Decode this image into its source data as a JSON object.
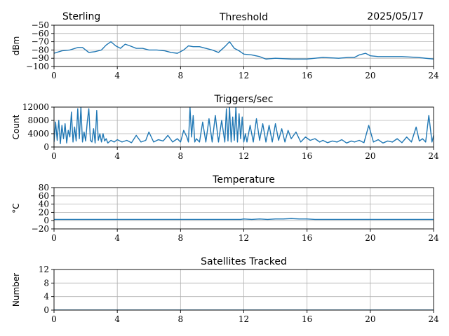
{
  "header": {
    "station": "Sterling",
    "date": "2025/05/17"
  },
  "colors": {
    "series": "#1f77b4",
    "grid": "#b0b0b0"
  },
  "chart_data": [
    {
      "type": "line",
      "title": "Threshold",
      "ylabel": "dBm",
      "xlabel": "",
      "xlim": [
        0,
        24
      ],
      "ylim": [
        -100,
        -50
      ],
      "xticks": [
        "0",
        "4",
        "8",
        "12",
        "16",
        "20",
        "24"
      ],
      "yticks": [
        "−50",
        "−60",
        "−70",
        "−80",
        "−90",
        "−100"
      ],
      "yticks_values": [
        -50,
        -60,
        -70,
        -80,
        -90,
        -100
      ],
      "grid": true,
      "series": [
        {
          "x": [
            0,
            0.5,
            1,
            1.5,
            1.8,
            2.2,
            2.6,
            3.0,
            3.3,
            3.6,
            3.9,
            4.2,
            4.5,
            4.8,
            5.2,
            5.6,
            6.0,
            6.5,
            7.0,
            7.4,
            7.8,
            8.2,
            8.5,
            8.8,
            9.2,
            9.6,
            10.0,
            10.4,
            10.8,
            11.1,
            11.4,
            11.7,
            12.0,
            12.5,
            13.0,
            13.4,
            14.0,
            15.0,
            16.0,
            16.5,
            17.0,
            18.0,
            18.6,
            19.0,
            19.3,
            19.7,
            20.0,
            20.5,
            21.0,
            22.0,
            23.0,
            24.0
          ],
          "y": [
            -84,
            -81,
            -80,
            -77,
            -77,
            -83,
            -82,
            -80,
            -74,
            -70,
            -75,
            -78,
            -73,
            -75,
            -78,
            -78,
            -80,
            -80,
            -81,
            -83,
            -84,
            -80,
            -75,
            -76,
            -76,
            -78,
            -80,
            -83,
            -76,
            -70,
            -78,
            -81,
            -85,
            -86,
            -88,
            -91,
            -90,
            -91,
            -91,
            -90,
            -89,
            -90,
            -89,
            -89,
            -86,
            -84,
            -87,
            -88,
            -88,
            -88,
            -89,
            -91
          ]
        }
      ]
    },
    {
      "type": "line",
      "title": "Triggers/sec",
      "ylabel": "Count",
      "xlabel": "",
      "xlim": [
        0,
        24
      ],
      "ylim": [
        0,
        12000
      ],
      "xticks": [
        "0",
        "4",
        "8",
        "12",
        "16",
        "20",
        "24"
      ],
      "yticks": [
        "12000",
        "8000",
        "4000",
        "0"
      ],
      "yticks_values": [
        12000,
        8000,
        4000,
        0
      ],
      "grid": true,
      "series": [
        {
          "x": [
            0,
            0.1,
            0.2,
            0.3,
            0.4,
            0.5,
            0.6,
            0.7,
            0.8,
            0.9,
            1.0,
            1.1,
            1.2,
            1.3,
            1.4,
            1.5,
            1.6,
            1.7,
            1.8,
            1.9,
            2.0,
            2.1,
            2.2,
            2.3,
            2.4,
            2.5,
            2.6,
            2.7,
            2.8,
            2.9,
            3.0,
            3.1,
            3.2,
            3.3,
            3.4,
            3.6,
            3.8,
            4.0,
            4.3,
            4.6,
            4.9,
            5.2,
            5.5,
            5.8,
            6.0,
            6.3,
            6.6,
            6.9,
            7.2,
            7.5,
            7.8,
            8.0,
            8.2,
            8.4,
            8.5,
            8.6,
            8.7,
            8.8,
            8.9,
            9.0,
            9.2,
            9.4,
            9.6,
            9.8,
            10.0,
            10.2,
            10.4,
            10.6,
            10.8,
            10.9,
            11.0,
            11.1,
            11.2,
            11.3,
            11.4,
            11.5,
            11.6,
            11.7,
            11.8,
            11.9,
            12.0,
            12.1,
            12.2,
            12.4,
            12.6,
            12.8,
            13.0,
            13.2,
            13.4,
            13.6,
            13.8,
            14.0,
            14.2,
            14.4,
            14.6,
            14.8,
            15.0,
            15.3,
            15.6,
            15.9,
            16.2,
            16.5,
            16.8,
            17.0,
            17.3,
            17.6,
            17.9,
            18.2,
            18.5,
            18.8,
            19.0,
            19.3,
            19.6,
            19.9,
            20.2,
            20.5,
            20.8,
            21.1,
            21.4,
            21.7,
            22.0,
            22.3,
            22.6,
            22.9,
            23.1,
            23.3,
            23.5,
            23.7,
            23.9,
            24.0
          ],
          "y": [
            1500,
            7500,
            2000,
            8000,
            1000,
            6500,
            2500,
            7000,
            1200,
            5000,
            3000,
            10500,
            1500,
            6000,
            1800,
            11500,
            2500,
            12000,
            1500,
            4500,
            1800,
            7500,
            11500,
            2000,
            1500,
            5500,
            1200,
            11000,
            2000,
            4000,
            1500,
            4000,
            1800,
            2500,
            1200,
            2000,
            1500,
            2200,
            1500,
            2000,
            1300,
            3500,
            1500,
            2000,
            4500,
            1500,
            2200,
            1800,
            3500,
            1500,
            2500,
            1500,
            5000,
            3000,
            1500,
            11800,
            3000,
            9500,
            1500,
            2500,
            1500,
            7500,
            1500,
            8500,
            1500,
            9500,
            1500,
            8000,
            1500,
            11500,
            1800,
            12000,
            1500,
            9000,
            2000,
            12000,
            1500,
            10000,
            2500,
            9000,
            1500,
            4000,
            1500,
            6500,
            1500,
            8500,
            2000,
            7000,
            1500,
            6500,
            1500,
            7000,
            2000,
            5500,
            1500,
            5000,
            2500,
            4500,
            1500,
            3000,
            2000,
            2500,
            1500,
            2000,
            1300,
            1800,
            1500,
            2200,
            1200,
            1800,
            1500,
            2000,
            1300,
            6500,
            1500,
            2200,
            1200,
            1800,
            1500,
            2500,
            1300,
            3000,
            1500,
            6000,
            1800,
            2500,
            1500,
            9500,
            1500,
            3500
          ]
        }
      ]
    },
    {
      "type": "line",
      "title": "Temperature",
      "ylabel": "°C",
      "xlabel": "",
      "xlim": [
        0,
        24
      ],
      "ylim": [
        -20,
        80
      ],
      "xticks": [
        "0",
        "4",
        "8",
        "12",
        "16",
        "20",
        "24"
      ],
      "yticks": [
        "80",
        "60",
        "40",
        "20",
        "0",
        "−20"
      ],
      "yticks_values": [
        80,
        60,
        40,
        20,
        0,
        -20
      ],
      "grid": true,
      "series": [
        {
          "x": [
            0,
            4,
            8,
            11.8,
            12.0,
            12.5,
            13.0,
            13.5,
            14.0,
            14.5,
            15.0,
            15.5,
            16.0,
            16.5,
            17.0,
            20,
            24
          ],
          "y": [
            3,
            3,
            3,
            3,
            4,
            3,
            4,
            3,
            4,
            4,
            5,
            4,
            4,
            3,
            3,
            3,
            3
          ]
        }
      ]
    },
    {
      "type": "line",
      "title": "Satellites Tracked",
      "ylabel": "Number",
      "xlabel": "",
      "xlim": [
        0,
        24
      ],
      "ylim": [
        0,
        12
      ],
      "xticks": [
        "0",
        "4",
        "8",
        "12",
        "16",
        "20",
        "24"
      ],
      "yticks": [
        "12",
        "8",
        "4",
        "0"
      ],
      "yticks_values": [
        12,
        8,
        4,
        0
      ],
      "grid": true,
      "series": [
        {
          "x": [
            0,
            24
          ],
          "y": [
            0,
            0
          ]
        }
      ]
    }
  ]
}
